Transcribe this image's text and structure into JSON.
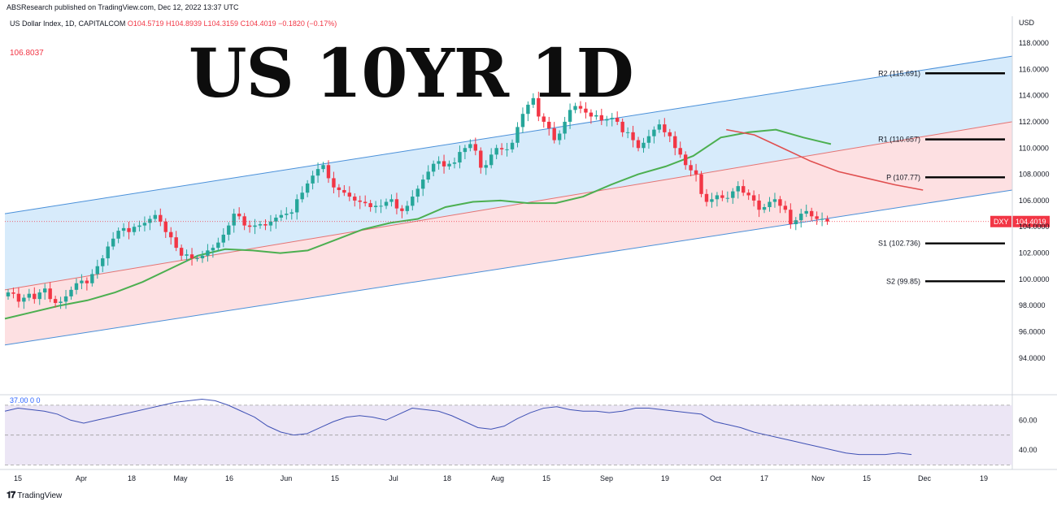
{
  "header": {
    "published": "ABSResearch published on TradingView.com, Dec 12, 2022 13:37 UTC",
    "symbol": "US Dollar Index, 1D, CAPITALCOM",
    "open": "O104.5719",
    "high": "H104.8939",
    "low": "L104.3159",
    "close": "C104.4019",
    "change": "−0.1820 (−0.17%)",
    "side_value": "106.8037"
  },
  "title": "US 10YR 1D",
  "brand": "TradingView",
  "colors": {
    "up": "#26a69a",
    "down": "#f23645",
    "channel_upper_fill": "#d7ebfb",
    "channel_lower_fill": "#fde0e2",
    "ma_green": "#4caf50",
    "ma_red": "#e04f4f",
    "rsi_line": "#3f51b5",
    "rsi_band": "#ece6f5"
  },
  "chart_data": {
    "type": "candlestick",
    "symbol": "DXY",
    "last_price_label": "DXY",
    "last_price": "104.4019",
    "y_axis_title": "USD",
    "ylim": [
      92.2,
      118.8
    ],
    "y_ticks": [
      "118.0000",
      "116.0000",
      "114.0000",
      "112.0000",
      "110.0000",
      "108.0000",
      "106.0000",
      "104.0000",
      "102.0000",
      "100.0000",
      "98.0000",
      "96.0000",
      "94.0000"
    ],
    "x_ticks": [
      "15",
      "Apr",
      "18",
      "May",
      "16",
      "Jun",
      "15",
      "Jul",
      "18",
      "Aug",
      "15",
      "Sep",
      "19",
      "Oct",
      "17",
      "Nov",
      "15",
      "Dec",
      "19"
    ],
    "pivots": [
      {
        "label": "R2 (115.691)",
        "value": 115.691
      },
      {
        "label": "R1 (110.657)",
        "value": 110.657
      },
      {
        "label": "P (107.77)",
        "value": 107.77
      },
      {
        "label": "S1 (102.736)",
        "value": 102.736
      },
      {
        "label": "S2 (99.85)",
        "value": 99.85
      }
    ],
    "channel": {
      "upper_start": 105.0,
      "upper_end": 117.0,
      "mid_start": 99.2,
      "mid_end": 112.0,
      "lower_start": 95.0,
      "lower_end": 106.8
    },
    "close_path": [
      99.0,
      98.9,
      98.3,
      98.6,
      98.9,
      98.5,
      99.0,
      99.3,
      98.5,
      98.2,
      98.3,
      98.7,
      99.2,
      99.7,
      99.9,
      99.7,
      100.4,
      101.0,
      101.6,
      102.5,
      103.1,
      103.7,
      103.9,
      103.6,
      104.0,
      104.1,
      104.3,
      104.6,
      104.9,
      104.4,
      103.6,
      103.2,
      102.4,
      101.8,
      101.9,
      101.6,
      101.6,
      101.8,
      102.2,
      102.4,
      102.8,
      103.4,
      104.1,
      105.0,
      104.8,
      104.1,
      104.0,
      104.1,
      104.2,
      104.1,
      104.4,
      104.7,
      104.9,
      105.0,
      105.1,
      106.1,
      106.6,
      107.3,
      107.9,
      108.4,
      108.7,
      107.7,
      107.0,
      106.8,
      106.6,
      106.3,
      106.0,
      105.9,
      105.8,
      105.5,
      105.6,
      105.6,
      105.9,
      106.1,
      105.4,
      105.2,
      105.6,
      106.3,
      106.9,
      107.6,
      108.2,
      108.8,
      109.0,
      108.6,
      108.8,
      108.9,
      109.7,
      110.0,
      110.3,
      109.8,
      108.5,
      108.7,
      109.5,
      110.0,
      109.9,
      109.9,
      110.4,
      111.6,
      112.6,
      113.3,
      113.8,
      112.4,
      112.0,
      111.5,
      110.6,
      111.1,
      112.0,
      112.9,
      113.2,
      113.0,
      112.7,
      112.4,
      112.5,
      112.1,
      112.2,
      112.3,
      112.0,
      111.2,
      111.2,
      110.6,
      110.0,
      110.4,
      110.9,
      111.4,
      111.8,
      111.2,
      110.9,
      110.0,
      109.5,
      108.7,
      108.3,
      108.0,
      106.5,
      105.9,
      106.1,
      106.4,
      106.2,
      106.2,
      106.7,
      107.1,
      106.6,
      106.4,
      106.0,
      105.3,
      105.5,
      105.9,
      106.1,
      105.6,
      105.3,
      104.2,
      104.5,
      105.0,
      105.2,
      104.8,
      104.6,
      104.6,
      104.4
    ],
    "ma_green_path": [
      97.0,
      97.5,
      98.0,
      98.4,
      99.0,
      99.8,
      100.8,
      101.8,
      102.3,
      102.2,
      102.0,
      102.2,
      103.0,
      103.8,
      104.3,
      104.6,
      105.5,
      105.9,
      106.0,
      105.8,
      105.8,
      106.3,
      107.2,
      108.0,
      108.6,
      109.4,
      110.8,
      111.2,
      111.4,
      110.8,
      110.3
    ],
    "ma_red_path": [
      {
        "t": 0.77,
        "v": 111.4
      },
      {
        "t": 0.8,
        "v": 111.0
      },
      {
        "t": 0.83,
        "v": 110.0
      },
      {
        "t": 0.86,
        "v": 109.0
      },
      {
        "t": 0.89,
        "v": 108.2
      },
      {
        "t": 0.92,
        "v": 107.7
      },
      {
        "t": 0.95,
        "v": 107.2
      },
      {
        "t": 0.98,
        "v": 106.8
      }
    ],
    "rsi": {
      "legend": "37.00  0  0",
      "y_ticks": [
        "60.00",
        "40.00"
      ],
      "ylim": [
        27,
        77
      ],
      "band": [
        30,
        70
      ],
      "path": [
        66,
        68,
        67,
        66,
        64,
        60,
        58,
        60,
        62,
        64,
        66,
        68,
        70,
        72,
        73,
        74,
        73,
        70,
        66,
        62,
        56,
        52,
        50,
        51,
        55,
        59,
        62,
        63,
        62,
        60,
        64,
        68,
        67,
        66,
        63,
        59,
        55,
        54,
        56,
        61,
        65,
        68,
        69,
        67,
        66,
        66,
        65,
        66,
        68,
        68,
        67,
        66,
        65,
        64,
        59,
        57,
        55,
        52,
        50,
        48,
        46,
        44,
        42,
        40,
        38,
        37,
        37,
        37,
        38,
        37
      ]
    }
  }
}
